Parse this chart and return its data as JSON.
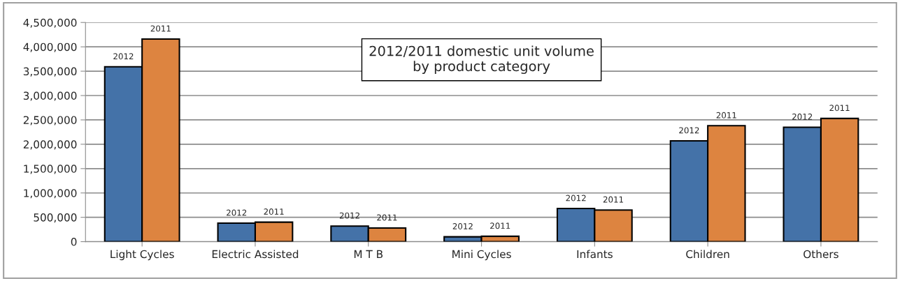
{
  "chart_data": {
    "type": "bar",
    "title": "2012/2011 domestic unit volume\nby product category",
    "categories": [
      "Light Cycles",
      "Electric Assisted",
      "M T B",
      "Mini Cycles",
      "Infants",
      "Children",
      "Others"
    ],
    "series": [
      {
        "name": "2012",
        "color": "#4472a8",
        "values": [
          3590000,
          380000,
          320000,
          100000,
          680000,
          2070000,
          2350000
        ]
      },
      {
        "name": "2011",
        "color": "#dd8440",
        "values": [
          4160000,
          400000,
          280000,
          110000,
          650000,
          2380000,
          2530000
        ]
      }
    ],
    "ylim": [
      0,
      4500000
    ],
    "yticks": [
      {
        "value": 0,
        "label": "0"
      },
      {
        "value": 500000,
        "label": "500,000"
      },
      {
        "value": 1000000,
        "label": "1,000,000"
      },
      {
        "value": 1500000,
        "label": "1,500,000"
      },
      {
        "value": 2000000,
        "label": "2,000,000"
      },
      {
        "value": 2500000,
        "label": "2,500,000"
      },
      {
        "value": 3000000,
        "label": "3,000,000"
      },
      {
        "value": 3500000,
        "label": "3,500,000"
      },
      {
        "value": 4000000,
        "label": "4,000,000"
      },
      {
        "value": 4500000,
        "label": "4,500,000"
      }
    ],
    "grid": "y",
    "legend": false
  }
}
